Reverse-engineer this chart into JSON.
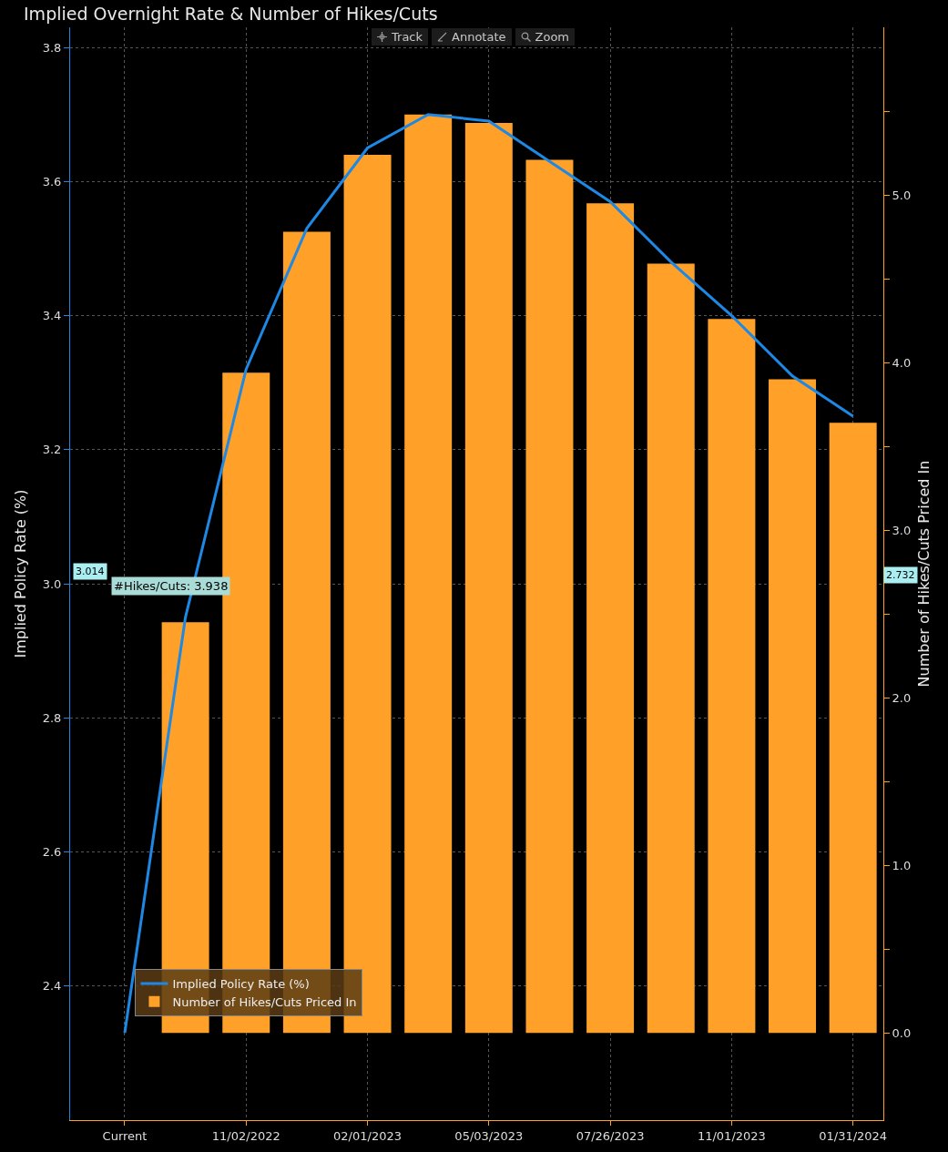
{
  "chart_data": {
    "type": "bar",
    "title": "Implied Overnight Rate & Number of Hikes/Cuts",
    "ylabel": "Implied Policy Rate (%)",
    "y2label": "Number of Hikes/Cuts Priced In",
    "categories": [
      "Current",
      null,
      "11/02/2022",
      null,
      "02/01/2023",
      null,
      "05/03/2023",
      null,
      "07/26/2023",
      null,
      "11/01/2023",
      null,
      "01/31/2024"
    ],
    "series": [
      {
        "name": "Implied Policy Rate (%)",
        "type": "line",
        "color": "#1e88e5",
        "values": [
          2.33,
          2.95,
          3.32,
          3.53,
          3.65,
          3.7,
          3.69,
          3.63,
          3.57,
          3.48,
          3.4,
          3.31,
          3.25
        ]
      },
      {
        "name": "Number of Hikes/Cuts Priced In",
        "axis": "y2",
        "color": "#ffa028",
        "values": [
          0,
          2.45,
          3.94,
          4.78,
          5.24,
          5.48,
          5.43,
          5.21,
          4.95,
          4.59,
          4.26,
          3.9,
          3.64
        ]
      }
    ],
    "ylim": [
      2.2,
      3.83
    ],
    "yticks": [
      2.4,
      2.6,
      2.8,
      {
        "value": 3,
        "label": "3.0"
      },
      3.2,
      3.4,
      3.6,
      3.8
    ],
    "y2lim": [
      -0.52,
      6.0
    ],
    "y2ticks": [
      {
        "value": 0,
        "label": "0.0"
      },
      {
        "value": 0.5,
        "label": null
      },
      {
        "value": 1,
        "label": "1.0"
      },
      {
        "value": 1.5,
        "label": null
      },
      {
        "value": 2,
        "label": "2.0"
      },
      {
        "value": 2.5,
        "label": null
      },
      {
        "value": 3,
        "label": "3.0"
      },
      {
        "value": 3.5,
        "label": null
      },
      {
        "value": 4,
        "label": "4.0"
      },
      {
        "value": 4.5,
        "label": null
      },
      {
        "value": 5,
        "label": "5.0"
      },
      {
        "value": 5.5,
        "label": null
      }
    ],
    "annotations": [
      "Track",
      "Annotate",
      "Zoom",
      "#Hikes/Cuts: 3.938",
      "3.014",
      "2.732"
    ],
    "grid": true,
    "legend": "bottom left"
  }
}
